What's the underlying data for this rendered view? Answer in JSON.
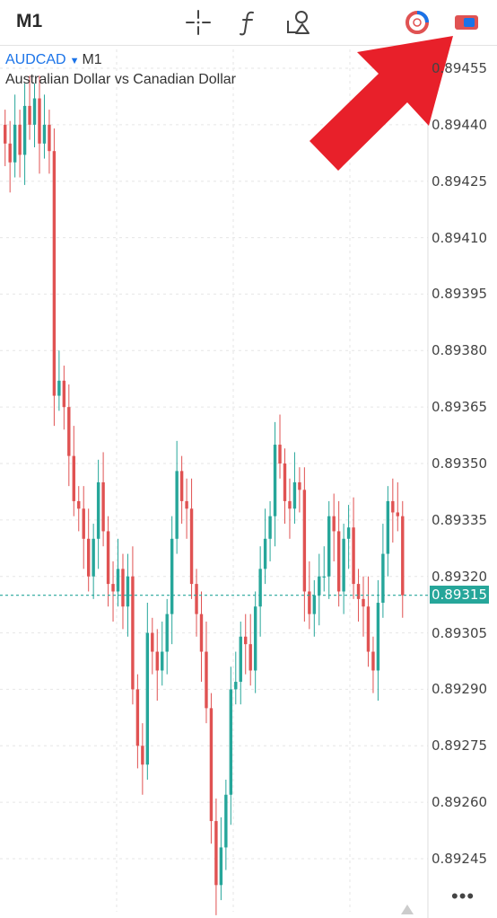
{
  "toolbar": {
    "timeframe": "M1",
    "icons": [
      "crosshair-icon",
      "function-icon",
      "objects-icon",
      "history-icon",
      "trade-icon"
    ]
  },
  "chart": {
    "symbol": "AUDCAD",
    "timeframe": "M1",
    "description": "Australian Dollar vs Canadian Dollar",
    "current_price": "0.89315",
    "price_labels": [
      "0.89455",
      "0.89440",
      "0.89425",
      "0.89410",
      "0.89395",
      "0.89380",
      "0.89365",
      "0.89350",
      "0.89335",
      "0.89320",
      "0.89305",
      "0.89290",
      "0.89275",
      "0.89260",
      "0.89245"
    ],
    "colors": {
      "up": "#26a69a",
      "down": "#e05252",
      "grid": "#e6e6e6",
      "arrow": "#e8202a"
    }
  },
  "chart_data": {
    "type": "candlestick",
    "ylim": [
      0.89237,
      0.8946
    ],
    "y_ticks": [
      0.89455,
      0.8944,
      0.89425,
      0.8941,
      0.89395,
      0.8938,
      0.89365,
      0.8935,
      0.89335,
      0.8932,
      0.89305,
      0.8929,
      0.89275,
      0.8926,
      0.89245
    ],
    "current_price": 0.89315,
    "candles_close": [
      0.89435,
      0.8943,
      0.8944,
      0.89432,
      0.89445,
      0.8944,
      0.89447,
      0.89435,
      0.8944,
      0.89433,
      0.89368,
      0.89372,
      0.89365,
      0.89352,
      0.8934,
      0.89338,
      0.8933,
      0.8932,
      0.8933,
      0.89345,
      0.89332,
      0.89318,
      0.89316,
      0.89322,
      0.89312,
      0.8932,
      0.8929,
      0.89275,
      0.8927,
      0.89305,
      0.893,
      0.89295,
      0.893,
      0.8931,
      0.8933,
      0.89348,
      0.8934,
      0.89338,
      0.89318,
      0.8931,
      0.893,
      0.89285,
      0.89255,
      0.89238,
      0.89248,
      0.89262,
      0.8929,
      0.89292,
      0.89304,
      0.89302,
      0.89295,
      0.89312,
      0.89322,
      0.8933,
      0.89336,
      0.89355,
      0.8935,
      0.8934,
      0.89338,
      0.89345,
      0.89343,
      0.89316,
      0.8931,
      0.89315,
      0.8932,
      0.8932,
      0.89336,
      0.89332,
      0.89316,
      0.8933,
      0.89333,
      0.89318,
      0.89314,
      0.89312,
      0.893,
      0.89295,
      0.89313,
      0.89326,
      0.8934,
      0.89337,
      0.89336,
      0.89315
    ]
  }
}
